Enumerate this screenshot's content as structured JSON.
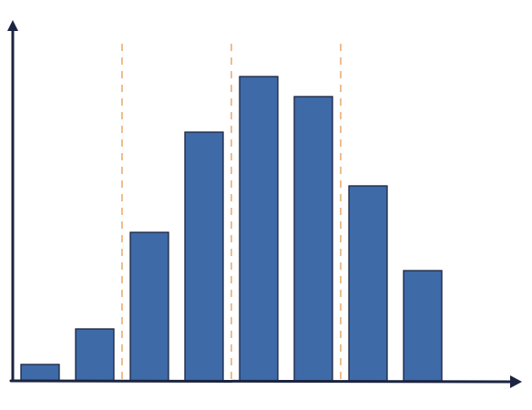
{
  "chart_data": {
    "type": "bar",
    "categories": [
      null,
      null,
      null,
      null,
      null,
      null,
      null,
      null
    ],
    "values": [
      18,
      57,
      163,
      273,
      334,
      312,
      214,
      121
    ],
    "color": "#3e6aa8",
    "ylim": [
      0,
      390
    ]
  }
}
